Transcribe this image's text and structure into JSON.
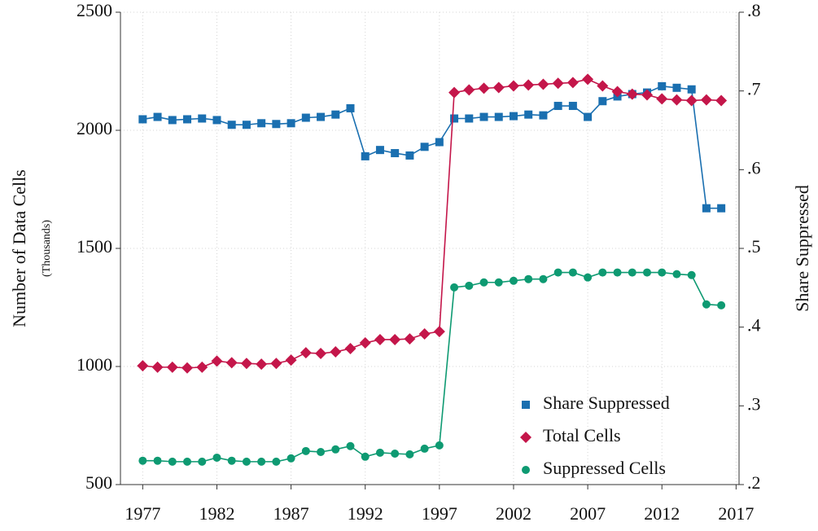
{
  "chart_data": {
    "type": "line",
    "y_label": "Number of Data Cells",
    "y_sublabel": "(Thousands)",
    "y2_label": "Share Suppressed",
    "x": [
      1977,
      1978,
      1979,
      1980,
      1981,
      1982,
      1983,
      1984,
      1985,
      1986,
      1987,
      1988,
      1989,
      1990,
      1991,
      1992,
      1993,
      1994,
      1995,
      1996,
      1997,
      1998,
      1999,
      2000,
      2001,
      2002,
      2003,
      2004,
      2005,
      2006,
      2007,
      2008,
      2009,
      2010,
      2011,
      2012,
      2013,
      2014,
      2015,
      2016
    ],
    "xlim": [
      1975.5,
      2017.2
    ],
    "xticks": [
      1977,
      1982,
      1987,
      1992,
      1997,
      2002,
      2007,
      2012,
      2017
    ],
    "ylim": [
      500,
      2500
    ],
    "yticks": [
      500,
      1000,
      1500,
      2000,
      2500
    ],
    "y2lim": [
      0.2,
      0.8
    ],
    "y2ticks": [
      {
        "value": 0.2,
        "label": ".2"
      },
      {
        "value": 0.3,
        "label": ".3"
      },
      {
        "value": 0.4,
        "label": ".4"
      },
      {
        "value": 0.5,
        "label": ".5"
      },
      {
        "value": 0.6,
        "label": ".6"
      },
      {
        "value": 0.7,
        "label": ".7"
      },
      {
        "value": 0.8,
        "label": ".8"
      }
    ],
    "grid": true,
    "legend": "lower right",
    "series": [
      {
        "name": "Share Suppressed",
        "color": "#1a6fb0",
        "marker": "square",
        "axis": "y2",
        "values": [
          0.664,
          0.667,
          0.663,
          0.664,
          0.665,
          0.663,
          0.657,
          0.657,
          0.659,
          0.658,
          0.659,
          0.666,
          0.667,
          0.67,
          0.678,
          0.617,
          0.625,
          0.621,
          0.618,
          0.629,
          0.635,
          0.665,
          0.665,
          0.667,
          0.667,
          0.668,
          0.67,
          0.669,
          0.681,
          0.681,
          0.667,
          0.687,
          0.693,
          0.696,
          0.698,
          0.706,
          0.704,
          0.702,
          0.551,
          0.551
        ]
      },
      {
        "name": "Total Cells",
        "color": "#c4164a",
        "marker": "diamond",
        "axis": "y",
        "values": [
          1003,
          997,
          997,
          994,
          997,
          1023,
          1016,
          1013,
          1010,
          1013,
          1027,
          1058,
          1055,
          1062,
          1076,
          1100,
          1114,
          1114,
          1117,
          1138,
          1148,
          2160,
          2171,
          2178,
          2181,
          2188,
          2192,
          2195,
          2199,
          2202,
          2216,
          2188,
          2164,
          2153,
          2150,
          2133,
          2129,
          2126,
          2129,
          2126
        ]
      },
      {
        "name": "Suppressed Cells",
        "color": "#0e9a72",
        "marker": "circle",
        "axis": "y",
        "values": [
          601,
          601,
          597,
          597,
          597,
          614,
          601,
          597,
          597,
          597,
          611,
          642,
          638,
          649,
          663,
          618,
          635,
          631,
          628,
          652,
          666,
          1335,
          1342,
          1356,
          1356,
          1363,
          1370,
          1370,
          1398,
          1398,
          1377,
          1398,
          1398,
          1398,
          1398,
          1398,
          1391,
          1387,
          1263,
          1259
        ]
      }
    ]
  }
}
